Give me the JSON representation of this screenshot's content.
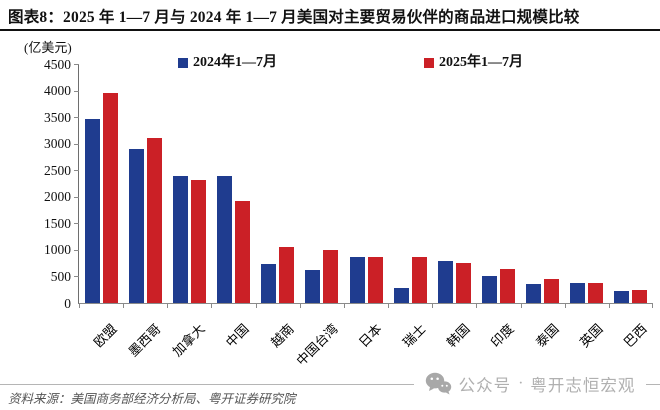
{
  "title": "图表8：2025 年 1—7 月与 2024 年 1—7 月美国对主要贸易伙伴的商品进口规模比较",
  "unit_label": "(亿美元)",
  "source": "资料来源：美国商务部经济分析局、粤开证券研究院",
  "watermark": {
    "icon": "wechat-icon",
    "prefix": "公众号",
    "separator": "·",
    "name": "粤开志恒宏观"
  },
  "colors": {
    "series_2024": "#1F3C8F",
    "series_2025": "#CB2026",
    "axis": "#8a8a8a",
    "title_text": "#111111",
    "source_text": "#555555",
    "watermark_text": "#b0b0b0"
  },
  "chart_data": {
    "type": "bar",
    "title": "2025年1—7月与2024年1—7月美国对主要贸易伙伴的商品进口规模比较",
    "unit": "亿美元",
    "categories": [
      "欧盟",
      "墨西哥",
      "加拿大",
      "中国",
      "越南",
      "中国台湾",
      "日本",
      "瑞士",
      "韩国",
      "印度",
      "泰国",
      "英国",
      "巴西"
    ],
    "series": [
      {
        "name": "2024年1—7月",
        "color": "#1F3C8F",
        "values": [
          3470,
          2900,
          2400,
          2390,
          740,
          620,
          860,
          290,
          790,
          510,
          350,
          380,
          230
        ]
      },
      {
        "name": "2025年1—7月",
        "color": "#CB2026",
        "values": [
          3950,
          3110,
          2310,
          1930,
          1050,
          1000,
          860,
          870,
          755,
          640,
          460,
          375,
          250
        ]
      }
    ],
    "ylim": [
      0,
      4500
    ],
    "ytick_step": 500,
    "yticks": [
      0,
      500,
      1000,
      1500,
      2000,
      2500,
      3000,
      3500,
      4000,
      4500
    ],
    "grid": false,
    "legend_position": "top-inside"
  }
}
